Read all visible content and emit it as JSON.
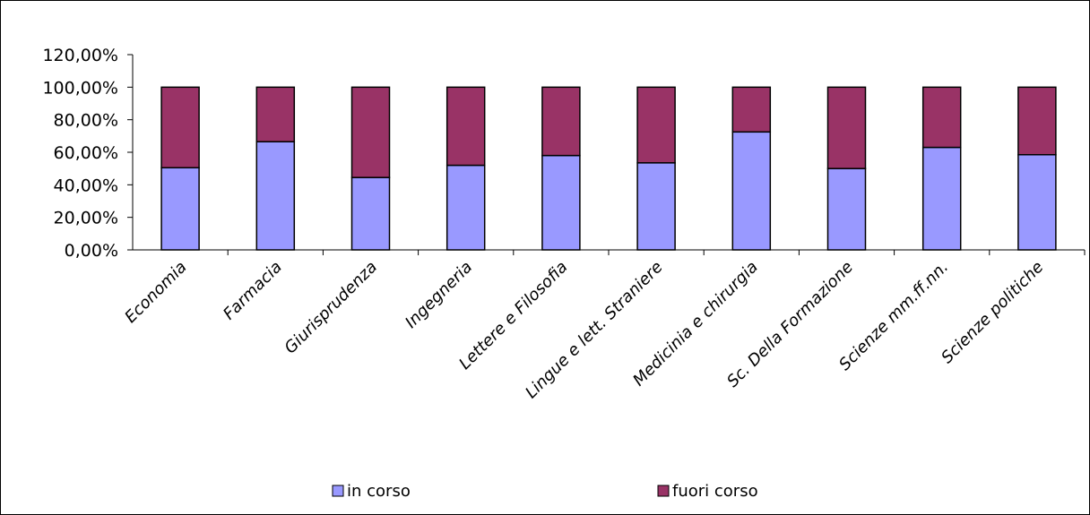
{
  "chart_data": {
    "type": "bar",
    "stacked": true,
    "percent": true,
    "categories": [
      "Economia",
      "Farmacia",
      "Giurisprudenza",
      "Ingegneria",
      "Lettere e Filosofia",
      "Lingue e lett. Straniere",
      "Medicinia e chirurgia",
      "Sc. Della Formazione",
      "Scienze mm.ff.nn.",
      "Scienze politiche"
    ],
    "series": [
      {
        "name": "in corso",
        "color": "#9999ff",
        "values": [
          50.5,
          66.5,
          44.5,
          52.0,
          58.0,
          53.5,
          72.5,
          50.0,
          63.0,
          58.5
        ]
      },
      {
        "name": "fuori corso",
        "color": "#993366",
        "values": [
          49.5,
          33.5,
          55.5,
          48.0,
          42.0,
          46.5,
          27.5,
          50.0,
          37.0,
          41.5
        ]
      }
    ],
    "ylim": [
      0,
      120
    ],
    "yticks": [
      "0,00%",
      "20,00%",
      "40,00%",
      "60,00%",
      "80,00%",
      "100,00%",
      "120,00%"
    ],
    "title": "",
    "xlabel": "",
    "ylabel": "",
    "grid": false,
    "legend_position": "bottom"
  }
}
